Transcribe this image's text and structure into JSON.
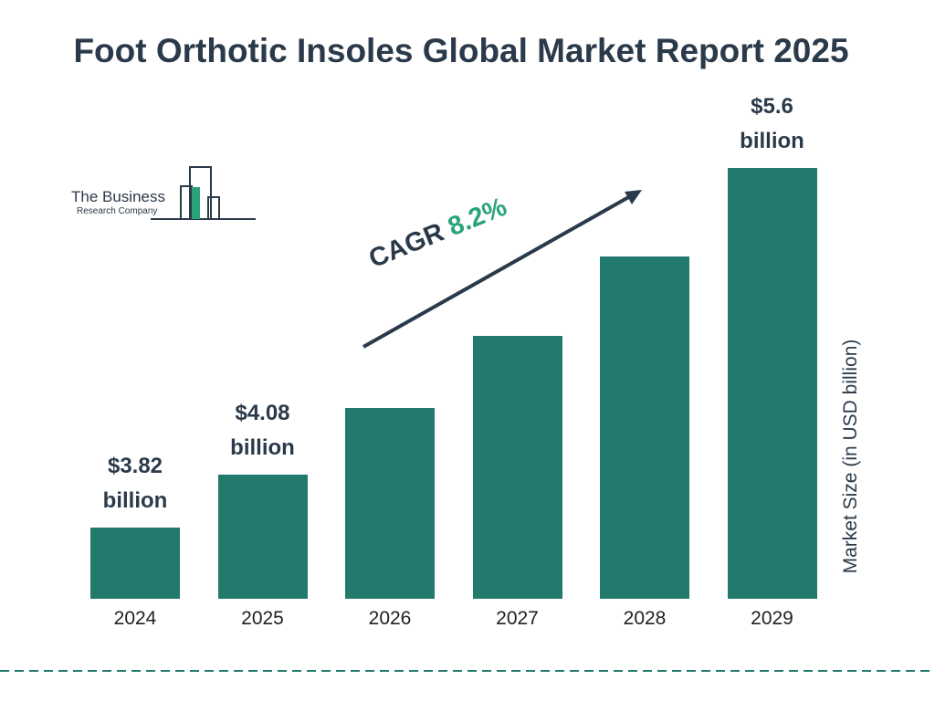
{
  "chart_data": {
    "type": "bar",
    "title": "Foot Orthotic Insoles Global Market Report 2025",
    "categories": [
      "2024",
      "2025",
      "2026",
      "2027",
      "2028",
      "2029"
    ],
    "values": [
      3.82,
      4.08,
      4.41,
      4.77,
      5.16,
      5.6
    ],
    "value_labels": [
      "$3.82 billion",
      "$4.08 billion",
      null,
      null,
      null,
      "$5.6 billion"
    ],
    "color": "#217a6b",
    "y_label": "Market Size (in USD billion)",
    "annotation": {
      "label": "CAGR",
      "value": "8.2%"
    },
    "logo": {
      "line1": "The Business",
      "line2": "Research Company"
    }
  }
}
